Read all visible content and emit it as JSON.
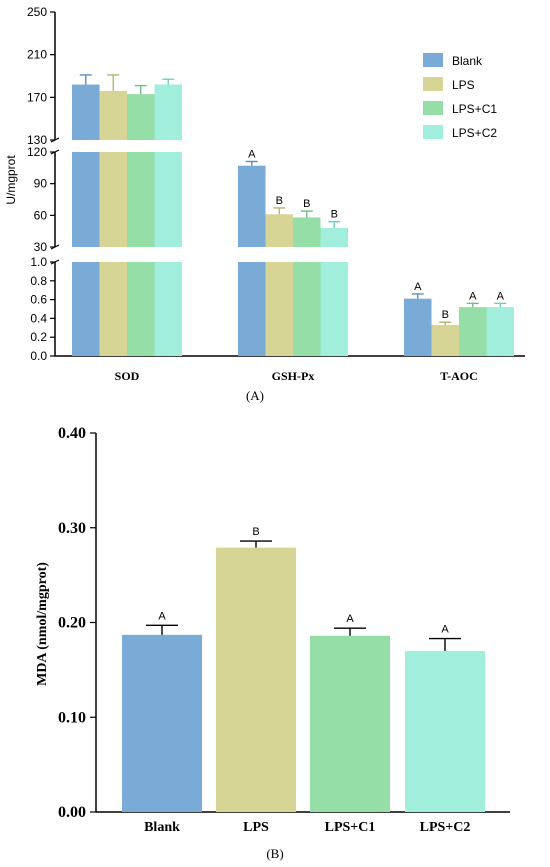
{
  "colors": {
    "Blank": "#7aaad6",
    "LPS": "#d7d595",
    "LPS+C1": "#96dea8",
    "LPS+C2": "#a0eedb"
  },
  "err_colors": {
    "Blank": "#5b8fc2",
    "LPS": "#b7b46e",
    "LPS+C1": "#6dbf86",
    "LPS+C2": "#72cfb7"
  },
  "chart_data": [
    {
      "panel": "A",
      "type": "bar",
      "ylabel": "U/mgprot",
      "categories": [
        "SOD",
        "GSH-Px",
        "T-AOC"
      ],
      "legend": [
        "Blank",
        "LPS",
        "LPS+C1",
        "LPS+C2"
      ],
      "legend_position": "top-right",
      "broken_axis": true,
      "segments": [
        {
          "range": [
            0.0,
            1.0
          ],
          "ticks": [
            "0.0",
            "0.2",
            "0.4",
            "0.6",
            "0.8",
            "1.0"
          ]
        },
        {
          "range": [
            30,
            120
          ],
          "ticks": [
            "30",
            "60",
            "90",
            "120"
          ]
        },
        {
          "range": [
            130,
            250
          ],
          "ticks": [
            "130",
            "170",
            "210",
            "250"
          ]
        }
      ],
      "series": [
        {
          "name": "Blank",
          "values": [
            182,
            107,
            0.61
          ],
          "errors": [
            9,
            4,
            0.05
          ],
          "labels": [
            "",
            "A",
            "A"
          ]
        },
        {
          "name": "LPS",
          "values": [
            176,
            61,
            0.33
          ],
          "errors": [
            15,
            6,
            0.03
          ],
          "labels": [
            "",
            "B",
            "B"
          ]
        },
        {
          "name": "LPS+C1",
          "values": [
            173,
            58,
            0.52
          ],
          "errors": [
            8,
            6,
            0.04
          ],
          "labels": [
            "",
            "B",
            "A"
          ]
        },
        {
          "name": "LPS+C2",
          "values": [
            182,
            48,
            0.52
          ],
          "errors": [
            5,
            6,
            0.04
          ],
          "labels": [
            "",
            "B",
            "A"
          ]
        }
      ]
    },
    {
      "panel": "B",
      "type": "bar",
      "ylabel": "MDA (nmol/mgprot)",
      "categories": [
        "Blank",
        "LPS",
        "LPS+C1",
        "LPS+C2"
      ],
      "values": [
        0.187,
        0.279,
        0.186,
        0.17
      ],
      "errors": [
        0.01,
        0.007,
        0.008,
        0.013
      ],
      "labels": [
        "A",
        "B",
        "A",
        "A"
      ],
      "ylim": [
        0.0,
        0.4
      ],
      "ticks": [
        "0.00",
        "0.10",
        "0.20",
        "0.30",
        "0.40"
      ]
    }
  ],
  "panel_labels": {
    "a": "(A)",
    "b": "(B)"
  }
}
